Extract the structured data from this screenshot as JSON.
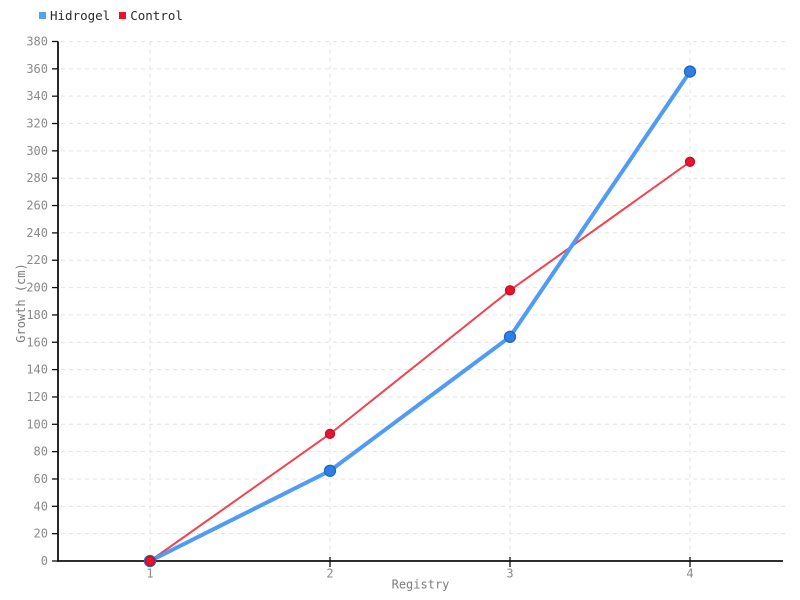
{
  "chart_data": {
    "type": "line",
    "x": [
      1,
      2,
      3,
      4
    ],
    "xticks": [
      1,
      2,
      3,
      4
    ],
    "series": [
      {
        "name": "Hidrogel",
        "values": [
          0,
          66,
          164,
          358
        ],
        "line_color": "#4f9bf5",
        "marker_color": "#2e7fe2",
        "marker_stroke": "#1f66c8",
        "legend_color": "#54a0ee",
        "line_width": 4,
        "marker_radius": 5.5
      },
      {
        "name": "Control",
        "values": [
          0,
          93,
          198,
          292
        ],
        "line_color": "#f4414f",
        "marker_color": "#e8142e",
        "marker_stroke": "#c60f22",
        "legend_color": "#e8142e",
        "line_width": 2,
        "marker_radius": 4.5
      }
    ],
    "title": "",
    "xlabel": "Registry",
    "ylabel": "Growth (cm)",
    "ylim": [
      0,
      380
    ],
    "ytick_step": 20,
    "grid": true,
    "legend_position": "top-left",
    "axis_color": "#111111",
    "grid_color": "#e3e3e3",
    "tick_label_color": "#8a8a8a",
    "axis_title_color": "#7d7d7d",
    "legend_text_color": "#2b2b2b"
  }
}
